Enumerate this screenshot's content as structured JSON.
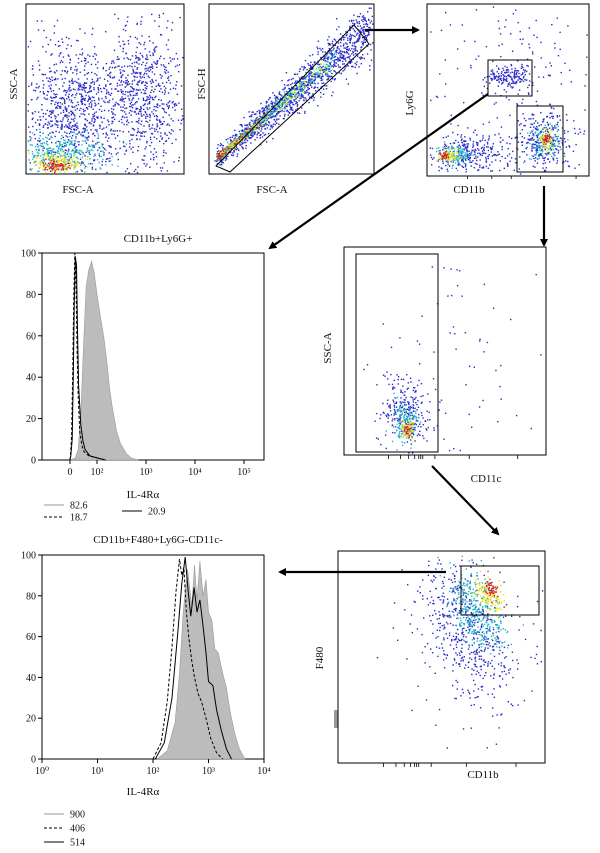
{
  "colors": {
    "density_low": "#2a2acb",
    "density_mid": "#1fb7c9",
    "density_high": "#f2e31a",
    "density_peak": "#e21b1b",
    "filled_histogram": "#bcbcbc",
    "gate": "#000000"
  },
  "panels": {
    "p1": {
      "xlabel": "FSC-A",
      "ylabel": "SSC-A"
    },
    "p2": {
      "xlabel": "FSC-A",
      "ylabel": "FSC-H"
    },
    "p3": {
      "xlabel": "CD11b",
      "ylabel": "Ly6G"
    },
    "p4": {
      "xlabel": "CD11c",
      "ylabel": "SSC-A"
    },
    "p5": {
      "xlabel": "CD11b",
      "ylabel": "F480"
    }
  },
  "chart_data": [
    {
      "type": "area",
      "id": "hist1",
      "title": "CD11b+Ly6G+",
      "xlabel": "IL-4Rα",
      "xscale": "biexponential",
      "x_ticks": [
        "0",
        "10²",
        "10³",
        "10⁴",
        "10⁵"
      ],
      "y_ticks": [
        "0",
        "20",
        "40",
        "60",
        "80",
        "100"
      ],
      "ylim": [
        0,
        100
      ],
      "series": [
        {
          "name": "82.6",
          "style": "filled",
          "x": [
            0,
            20,
            30,
            40,
            50,
            60,
            70,
            80,
            90,
            100,
            120,
            140,
            160,
            180,
            200,
            250,
            300,
            400,
            500,
            700
          ],
          "y": [
            0,
            1,
            5,
            22,
            55,
            84,
            92,
            96,
            90,
            80,
            68,
            58,
            47,
            35,
            27,
            14,
            8,
            3,
            1,
            0
          ]
        },
        {
          "name": "18.7",
          "style": "dashed",
          "x": [
            0,
            2,
            6,
            10,
            14,
            18,
            22,
            26,
            30,
            36,
            44,
            52,
            70,
            100,
            150
          ],
          "y": [
            0,
            2,
            12,
            42,
            80,
            100,
            90,
            55,
            32,
            14,
            7,
            4,
            2,
            1,
            0
          ]
        },
        {
          "name": "20.9",
          "style": "solid",
          "x": [
            0,
            3,
            8,
            12,
            16,
            20,
            24,
            28,
            32,
            40,
            48,
            56,
            74,
            100,
            150
          ],
          "y": [
            0,
            2,
            10,
            38,
            76,
            98,
            94,
            60,
            36,
            17,
            9,
            5,
            2,
            1,
            0
          ]
        }
      ]
    },
    {
      "type": "area",
      "id": "hist2",
      "title": "CD11b+F480+Ly6G-CD11c-",
      "xlabel": "IL-4Rα",
      "xscale": "log",
      "xlim": [
        1,
        10000
      ],
      "x_ticks": [
        "10⁰",
        "10¹",
        "10²",
        "10³",
        "10⁴"
      ],
      "y_ticks": [
        "0",
        "20",
        "40",
        "60",
        "80",
        "100"
      ],
      "ylim": [
        0,
        100
      ],
      "series": [
        {
          "name": "900",
          "style": "filled",
          "x": [
            120,
            180,
            250,
            300,
            350,
            420,
            500,
            560,
            620,
            700,
            800,
            900,
            1000,
            1150,
            1300,
            1500,
            1800,
            2100,
            2500,
            3000,
            3600,
            4500
          ],
          "y": [
            0,
            4,
            18,
            42,
            72,
            93,
            75,
            95,
            78,
            97,
            80,
            88,
            72,
            68,
            54,
            52,
            42,
            35,
            22,
            12,
            5,
            0
          ]
        },
        {
          "name": "406",
          "style": "dashed",
          "x": [
            100,
            140,
            180,
            220,
            260,
            300,
            330,
            360,
            400,
            440,
            500,
            560,
            650,
            750,
            900,
            1100,
            1400,
            1800
          ],
          "y": [
            0,
            8,
            28,
            55,
            82,
            98,
            90,
            94,
            72,
            60,
            48,
            40,
            32,
            28,
            20,
            10,
            3,
            0
          ]
        },
        {
          "name": "514",
          "style": "solid",
          "x": [
            110,
            160,
            220,
            280,
            330,
            380,
            430,
            480,
            550,
            620,
            700,
            800,
            900,
            1000,
            1200,
            1400,
            1700,
            2100,
            2600
          ],
          "y": [
            0,
            8,
            30,
            62,
            86,
            99,
            82,
            70,
            84,
            72,
            78,
            65,
            52,
            38,
            36,
            24,
            14,
            5,
            0
          ]
        }
      ]
    }
  ]
}
